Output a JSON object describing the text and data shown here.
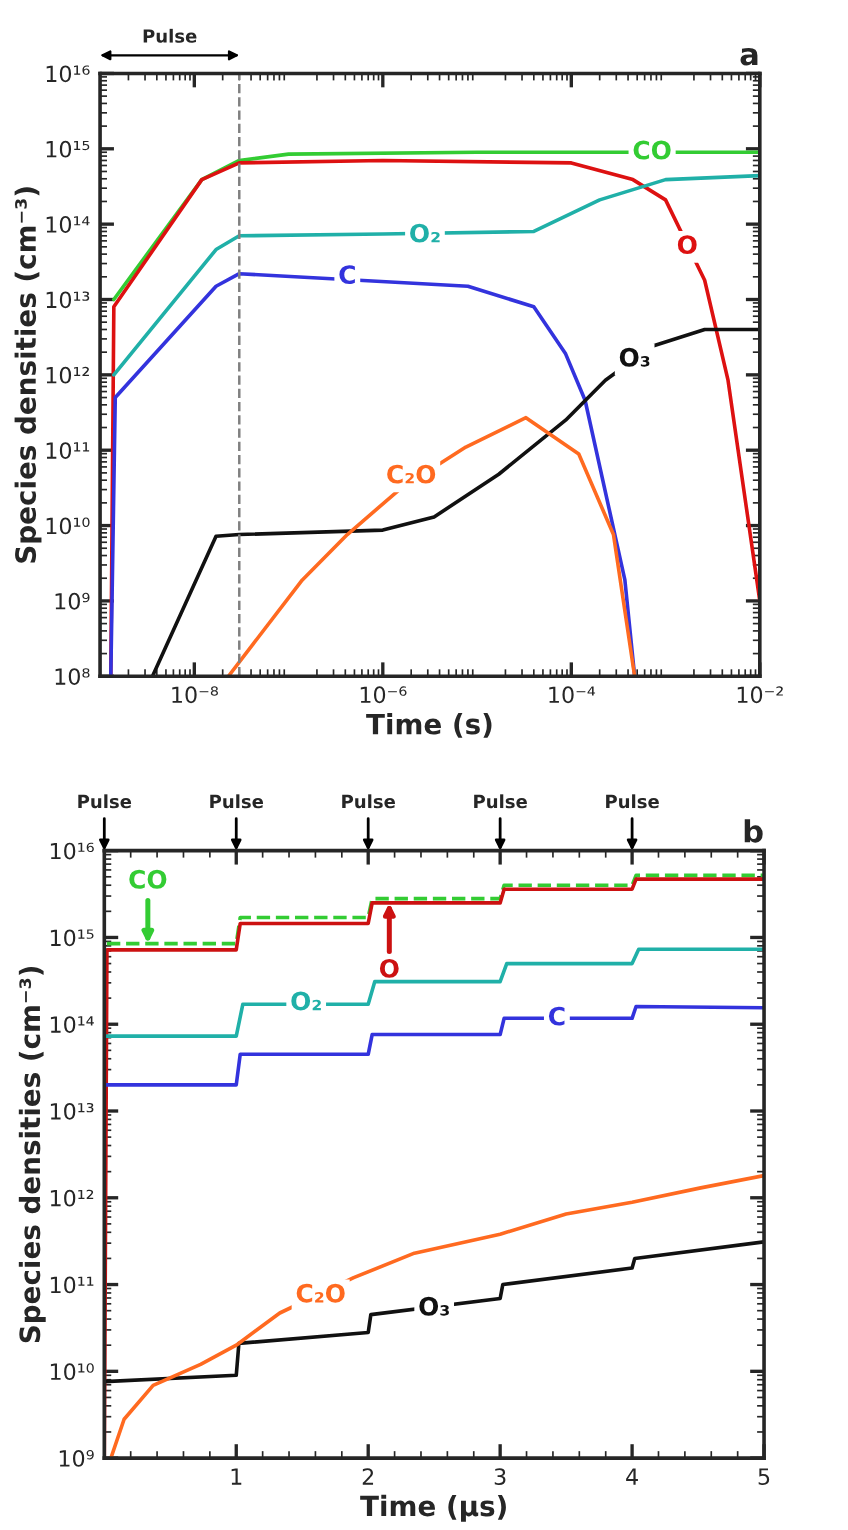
{
  "chart_data": [
    {
      "type": "line",
      "title": "a",
      "xlabel": "Time (s)",
      "ylabel": "Species densities (cm⁻³)",
      "log": "xy",
      "xlim": [
        1e-09,
        0.01
      ],
      "xticks": [
        {
          "value": 1e-08,
          "label": "10⁻⁸"
        },
        {
          "value": 1e-06,
          "label": "10⁻⁶"
        },
        {
          "value": 0.0001,
          "label": "10⁻⁴"
        },
        {
          "value": 0.01,
          "label": "10⁻²"
        }
      ],
      "ylim": [
        100000000.0,
        1e+16
      ],
      "yticks": [
        {
          "value": 100000000.0,
          "label": "10⁸"
        },
        {
          "value": 1000000000.0,
          "label": "10⁹"
        },
        {
          "value": 10000000000.0,
          "label": "10¹⁰"
        },
        {
          "value": 100000000000.0,
          "label": "10¹¹"
        },
        {
          "value": 1000000000000.0,
          "label": "10¹²"
        },
        {
          "value": 10000000000000.0,
          "label": "10¹³"
        },
        {
          "value": 100000000000000.0,
          "label": "10¹⁴"
        },
        {
          "value": 1000000000000000.0,
          "label": "10¹⁵"
        },
        {
          "value": 1e+16,
          "label": "10¹⁶"
        }
      ],
      "ref_lines": [
        {
          "axis": "x",
          "value": 3e-08,
          "label": "Pulse",
          "color": "#808080",
          "line_style": "dashed"
        }
      ],
      "series": [
        {
          "color": "#33cc33",
          "x": [
            1.4e-09,
            1.2e-08,
            3e-08,
            1e-07,
            1e-05,
            0.01
          ],
          "values": [
            10000000000000.0,
            390000000000000.0,
            700000000000000.0,
            850000000000000.0,
            900000000000000.0,
            900000000000000.0
          ]
        },
        {
          "color": "#dd1111",
          "x": [
            1.3e-09,
            1.4e-09,
            1.2e-08,
            3e-08,
            1e-06,
            0.0001,
            0.00045,
            0.001,
            0.0026,
            0.0046,
            0.01
          ],
          "values": [
            100000000.0,
            8000000000000.0,
            390000000000000.0,
            650000000000000.0,
            700000000000000.0,
            650000000000000.0,
            390000000000000.0,
            210000000000000.0,
            18000000000000.0,
            850000000000.0,
            1000000000.0
          ]
        },
        {
          "color": "#20b0a8",
          "x": [
            1.4e-09,
            1.7e-08,
            3e-08,
            1e-06,
            4e-05,
            0.0002,
            0.001,
            0.01
          ],
          "values": [
            1000000000000.0,
            46000000000000.0,
            70000000000000.0,
            74000000000000.0,
            80000000000000.0,
            210000000000000.0,
            390000000000000.0,
            440000000000000.0
          ]
        },
        {
          "color": "#3333dd",
          "x": [
            1.3e-09,
            1.45e-09,
            1.7e-08,
            3e-08,
            8e-06,
            4e-05,
            8.7e-05,
            0.00014,
            0.00037,
            0.00047
          ],
          "values": [
            100000000.0,
            500000000000.0,
            15000000000000.0,
            22000000000000.0,
            15000000000000.0,
            8000000000000.0,
            1900000000000.0,
            460000000000.0,
            1900000000.0,
            100000000.0
          ]
        },
        {
          "color": "#111111",
          "x": [
            3.6e-09,
            1.7e-08,
            3e-08,
            1e-06,
            3.5e-06,
            1.7e-05,
            8.7e-05,
            0.00023,
            0.00072,
            0.0026,
            0.01
          ],
          "values": [
            100000000.0,
            7200000000.0,
            7600000000.0,
            8700000000.0,
            13000000000.0,
            48000000000.0,
            250000000000.0,
            850000000000.0,
            2400000000000.0,
            4000000000000.0,
            4000000000000.0
          ]
        },
        {
          "color": "#ff6a20",
          "x": [
            2.3e-08,
            1.4e-07,
            4.2e-07,
            1.5e-06,
            7.6e-06,
            3.3e-05,
            0.00012,
            0.00028,
            0.00047
          ],
          "values": [
            100000000.0,
            1900000000.0,
            7600000000.0,
            30000000000.0,
            110000000000.0,
            270000000000.0,
            89000000000.0,
            7600000000.0,
            100000000.0
          ]
        }
      ],
      "annotations": [
        {
          "text": "CO",
          "x": 0.00072,
          "y": 900000000000000.0
        },
        {
          "text": "O",
          "x": 0.0017,
          "y": 50000000000000.0
        },
        {
          "text": "O₂",
          "x": 2.8e-06,
          "y": 71000000000000.0
        },
        {
          "text": "C",
          "x": 4.2e-07,
          "y": 20000000000000.0
        },
        {
          "text": "O₃",
          "x": 0.00047,
          "y": 1600000000000.0
        },
        {
          "text": "C₂O",
          "x": 2e-06,
          "y": 45000000000.0
        }
      ]
    },
    {
      "type": "line",
      "title": "b",
      "xlabel": "Time (µs)",
      "ylabel": "Species densities (cm⁻³)",
      "log": "y",
      "xlim": [
        0,
        5
      ],
      "xticks": [
        1,
        2,
        3,
        4,
        5
      ],
      "ylim": [
        1000000000.0,
        1e+16
      ],
      "yticks": [
        {
          "value": 1000000000.0,
          "label": "10⁹"
        },
        {
          "value": 10000000000.0,
          "label": "10¹⁰"
        },
        {
          "value": 100000000000.0,
          "label": "10¹¹"
        },
        {
          "value": 1000000000000.0,
          "label": "10¹²"
        },
        {
          "value": 10000000000000.0,
          "label": "10¹³"
        },
        {
          "value": 100000000000000.0,
          "label": "10¹⁴"
        },
        {
          "value": 1000000000000000.0,
          "label": "10¹⁵"
        },
        {
          "value": 1e+16,
          "label": "10¹⁶"
        }
      ],
      "series": [
        {
          "color": "#33cc33",
          "line_style": "dashed",
          "x": [
            0.02,
            1,
            1.03,
            2,
            2.03,
            3,
            3.03,
            4,
            4.03,
            5
          ],
          "values": [
            850000000000000.0,
            850000000000000.0,
            1700000000000000.0,
            1700000000000000.0,
            2800000000000000.0,
            2800000000000000.0,
            4000000000000000.0,
            4000000000000000.0,
            5200000000000000.0,
            5200000000000000.0
          ]
        },
        {
          "color": "#cc1111",
          "x": [
            0,
            0.02,
            1,
            1.03,
            2,
            2.03,
            3,
            3.03,
            4,
            4.03,
            5
          ],
          "values": [
            1000000000.0,
            720000000000000.0,
            720000000000000.0,
            1450000000000000.0,
            1450000000000000.0,
            2500000000000000.0,
            2500000000000000.0,
            3600000000000000.0,
            3600000000000000.0,
            4700000000000000.0,
            4700000000000000.0
          ]
        },
        {
          "color": "#20b0a8",
          "x": [
            0,
            1,
            1.05,
            2,
            2.05,
            3,
            3.05,
            4,
            4.05,
            5
          ],
          "values": [
            73000000000000.0,
            73000000000000.0,
            170000000000000.0,
            170000000000000.0,
            310000000000000.0,
            310000000000000.0,
            500000000000000.0,
            500000000000000.0,
            730000000000000.0,
            730000000000000.0
          ]
        },
        {
          "color": "#3333dd",
          "x": [
            0,
            1,
            1.03,
            2,
            2.03,
            3,
            3.03,
            4,
            4.03,
            5
          ],
          "values": [
            20000000000000.0,
            20000000000000.0,
            45000000000000.0,
            45000000000000.0,
            76000000000000.0,
            76000000000000.0,
            117000000000000.0,
            117000000000000.0,
            160000000000000.0,
            155000000000000.0
          ]
        },
        {
          "color": "#111111",
          "x": [
            0,
            1,
            1.02,
            2,
            2.02,
            3,
            3.02,
            4,
            4.02,
            5
          ],
          "values": [
            7600000000.0,
            9000000000.0,
            21000000000.0,
            28000000000.0,
            45000000000.0,
            69000000000.0,
            100000000000.0,
            155000000000.0,
            200000000000.0,
            310000000000.0
          ]
        },
        {
          "color": "#ff6a20",
          "x": [
            0.05,
            0.15,
            0.37,
            0.73,
            1.0,
            1.33,
            1.89,
            2.35,
            3.0,
            3.5,
            4.0,
            4.52,
            5.0
          ],
          "values": [
            1000000000.0,
            2800000000.0,
            6900000000.0,
            12000000000.0,
            20000000000.0,
            47000000000.0,
            120000000000.0,
            230000000000.0,
            380000000000.0,
            650000000000.0,
            890000000000.0,
            1300000000000.0,
            1800000000000.0
          ]
        }
      ],
      "annotations": [
        "Pulse",
        "Pulse",
        "Pulse",
        "Pulse",
        "Pulse",
        {
          "text": "CO",
          "x": 0.33,
          "y": 850000000000000.0
        },
        {
          "text": "O",
          "x": 2.16,
          "y": 2500000000000000.0
        },
        {
          "text": "O₂",
          "x": 1.53,
          "y": 175000000000000.0
        },
        {
          "text": "C",
          "x": 3.43,
          "y": 117000000000000.0
        },
        {
          "text": "C₂O",
          "x": 1.64,
          "y": 75000000000.0
        },
        {
          "text": "O₃",
          "x": 2.5,
          "y": 53000000000.0
        }
      ]
    }
  ]
}
